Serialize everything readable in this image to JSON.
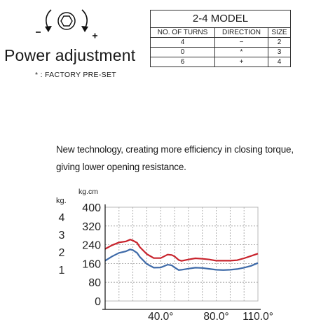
{
  "adjustment": {
    "icon": "hex-bolt-rotate-icon",
    "minus_sign": "−",
    "plus_sign": "+",
    "title": "Power adjustment",
    "factory_note": "* : FACTORY PRE-SET"
  },
  "model_table": {
    "caption": "2-4 MODEL",
    "headers": [
      "NO. OF TURNS",
      "DIRECTION",
      "SIZE"
    ],
    "rows": [
      [
        "4",
        "−",
        "2"
      ],
      [
        "0",
        "*",
        "3"
      ],
      [
        "6",
        "+",
        "4"
      ]
    ]
  },
  "description": {
    "line1": "New technology, creating more efficiency in closing torque,",
    "line2": "giving lower opening resistance."
  },
  "chart_data": {
    "type": "line",
    "kg_unit_label": "kg.",
    "kg_ticks": [
      "4",
      "3",
      "2",
      "1"
    ],
    "ylabel": "kg.cm",
    "ylim": [
      0,
      400
    ],
    "yticks": [
      0,
      80,
      160,
      240,
      320,
      400
    ],
    "xlim": [
      0,
      110
    ],
    "xticks": [
      40,
      80,
      110
    ],
    "xtick_labels": [
      "40.0°",
      "80.0°",
      "110.0°"
    ],
    "grid": true,
    "series": [
      {
        "color": "#c8232c",
        "x": [
          0,
          5,
          10,
          15,
          18,
          20,
          23,
          25,
          30,
          35,
          40,
          45,
          48,
          50,
          53,
          55,
          60,
          65,
          70,
          75,
          80,
          85,
          90,
          95,
          100,
          105,
          110
        ],
        "y": [
          222,
          238,
          250,
          254,
          262,
          258,
          248,
          230,
          200,
          183,
          183,
          198,
          196,
          190,
          175,
          171,
          177,
          182,
          180,
          177,
          172,
          172,
          172,
          174,
          182,
          192,
          202
        ]
      },
      {
        "color": "#3e6aa8",
        "x": [
          0,
          5,
          10,
          15,
          18,
          20,
          23,
          25,
          30,
          35,
          40,
          45,
          48,
          50,
          53,
          55,
          60,
          65,
          70,
          75,
          80,
          85,
          90,
          95,
          100,
          105,
          110
        ],
        "y": [
          172,
          190,
          205,
          212,
          220,
          217,
          205,
          188,
          158,
          142,
          143,
          155,
          152,
          143,
          132,
          133,
          138,
          142,
          141,
          137,
          133,
          132,
          133,
          136,
          142,
          150,
          162
        ]
      }
    ]
  }
}
